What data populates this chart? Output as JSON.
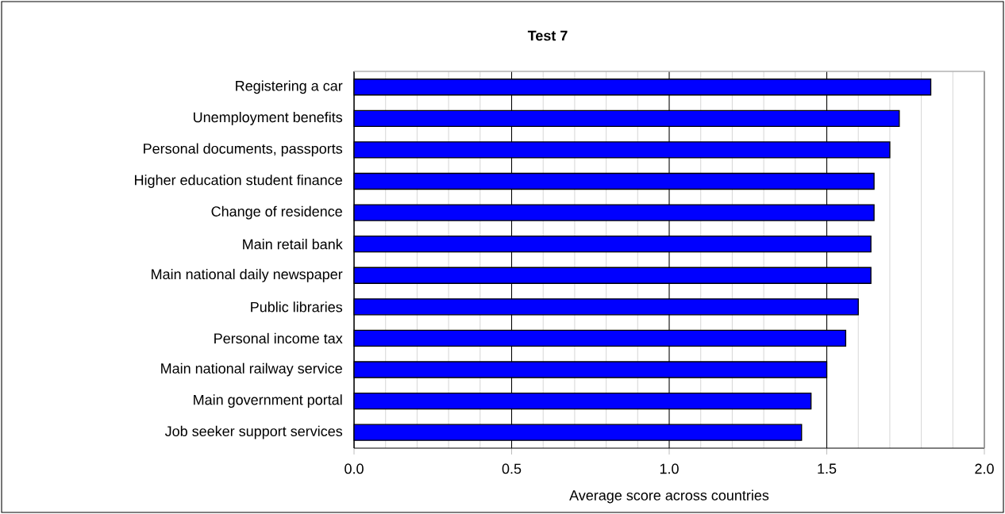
{
  "chart_data": {
    "type": "bar",
    "orientation": "horizontal",
    "title": "Test 7",
    "xlabel": "Average score across countries",
    "categories": [
      "Registering a car",
      "Unemployment benefits",
      "Personal documents, passports",
      "Higher education student finance",
      "Change of residence",
      "Main retail bank",
      "Main national daily newspaper",
      "Public libraries",
      "Personal income tax",
      "Main national railway service",
      "Main government portal",
      "Job seeker support services"
    ],
    "values": [
      1.83,
      1.73,
      1.7,
      1.65,
      1.65,
      1.64,
      1.64,
      1.6,
      1.56,
      1.5,
      1.45,
      1.42
    ],
    "color": "#0000ff",
    "xlim": [
      0,
      2
    ],
    "xticks": [
      {
        "value": 0,
        "label": "0.0"
      },
      {
        "value": 0.5,
        "label": "0.5"
      },
      {
        "value": 1,
        "label": "1.0"
      },
      {
        "value": 1.5,
        "label": "1.5"
      },
      {
        "value": 2,
        "label": "2.0"
      }
    ],
    "grid": "x"
  }
}
